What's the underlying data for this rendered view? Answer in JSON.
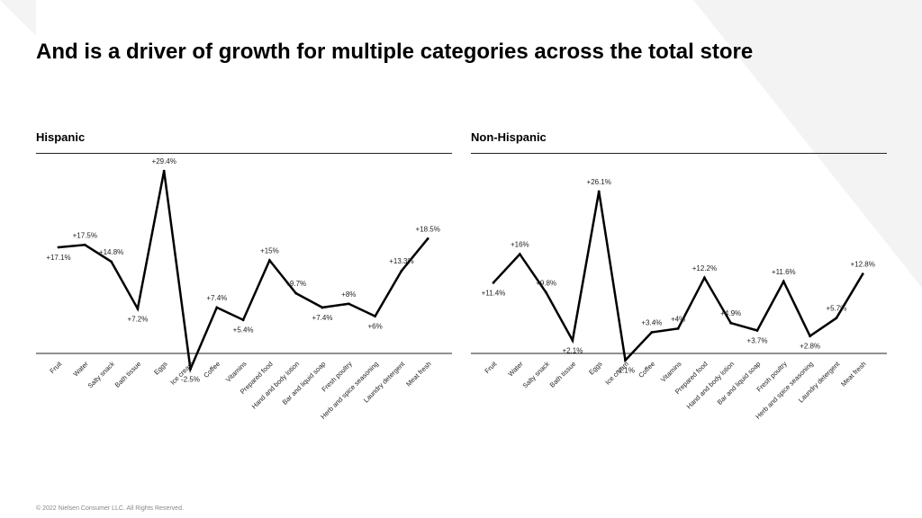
{
  "slide": {
    "title": "And is a driver of growth for multiple categories across the total store",
    "footer": "© 2022 Nielsen Consumer LLC. All Rights Reserved."
  },
  "colors": {
    "line": "#000000",
    "axis": "#222222",
    "background_shape": "#f2f2f2"
  },
  "chart_data": [
    {
      "type": "line",
      "title": "Hispanic",
      "categories": [
        "Fruit",
        "Water",
        "Salty snack",
        "Bath tissue",
        "Eggs",
        "Ice cream",
        "Coffee",
        "Vitamins",
        "Prepared food",
        "Hand and body lotion",
        "Bar and liquid soap",
        "Fresh poultry",
        "Herb and spice seasoning",
        "Laundry detergent",
        "Meat fresh"
      ],
      "values": [
        17.1,
        17.5,
        14.8,
        7.2,
        29.4,
        -2.5,
        7.4,
        5.4,
        15,
        9.7,
        7.4,
        8,
        6,
        13.3,
        18.5
      ],
      "data_labels": [
        "+17.1%",
        "+17.5%",
        "+14.8%",
        "+7.2%",
        "+29.4%",
        "-2.5%",
        "+7.4%",
        "+5.4%",
        "+15%",
        "+9.7%",
        "+7.4%",
        "+8%",
        "+6%",
        "+13.3%",
        "+18.5%"
      ],
      "ylim": [
        -3,
        30
      ],
      "grid": false,
      "legend": "none"
    },
    {
      "type": "line",
      "title": "Non-Hispanic",
      "categories": [
        "Fruit",
        "Water",
        "Salty snack",
        "Bath tissue",
        "Eggs",
        "Ice cream",
        "Coffee",
        "Vitamins",
        "Prepared food",
        "Hand and body lotion",
        "Bar and liquid soap",
        "Fresh poultry",
        "Herb and spice seasoning",
        "Laundry detergent",
        "Meat fresh"
      ],
      "values": [
        11.4,
        16,
        9.8,
        2.1,
        26.1,
        -1.1,
        3.4,
        4,
        12.2,
        4.9,
        3.7,
        11.6,
        2.8,
        5.7,
        12.8
      ],
      "data_labels": [
        "+11.4%",
        "+16%",
        "+9.8%",
        "+2.1%",
        "+26.1%",
        "-1.1%",
        "+3.4%",
        "+4%",
        "+12.2%",
        "+4.9%",
        "+3.7%",
        "+11.6%",
        "+2.8%",
        "+5.7%",
        "+12.8%"
      ],
      "ylim": [
        -3,
        30
      ],
      "grid": false,
      "legend": "none"
    }
  ]
}
